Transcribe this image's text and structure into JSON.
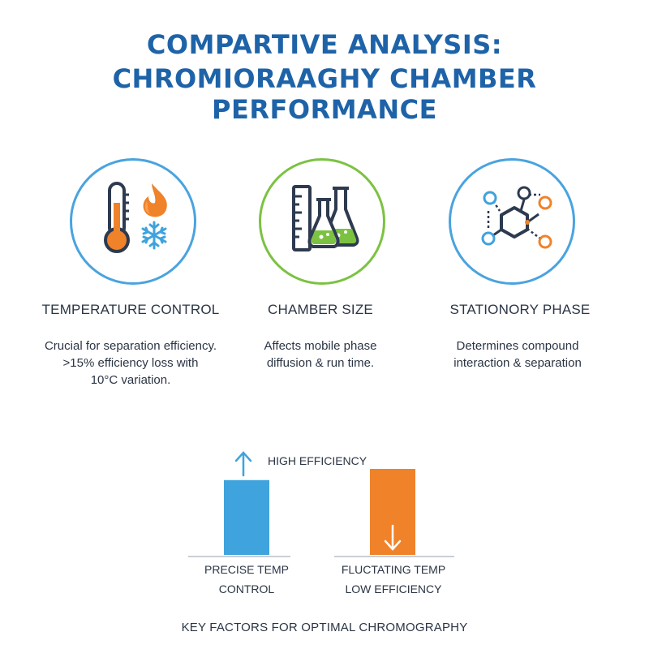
{
  "header": {
    "title_line1": "COMPARTIVE ANALYSIS:",
    "title_line2": "CHROMIORAAGHY CHAMBER PERFORMANCE"
  },
  "factors": [
    {
      "icon": "thermometer-flame-snowflake-icon",
      "title": "TEMPERATURE CONTROL",
      "desc_lines": [
        "Crucial for separation efficiency.",
        ">15% efficiency loss with",
        "10°C variation."
      ]
    },
    {
      "icon": "ruler-flasks-icon",
      "title": "CHAMBER SIZE",
      "desc_lines": [
        "Affects mobile phase",
        "diffusion & run time."
      ]
    },
    {
      "icon": "molecule-network-icon",
      "title": "STATIONORY PHASE",
      "desc_lines": [
        "Determines compound",
        "interaction & separation"
      ]
    }
  ],
  "chart_data": {
    "type": "bar",
    "categories": [
      "PRECISE TEMP CONTROL",
      "FLUCTATING TEMP LOW EFFICIENCY"
    ],
    "category_lines": [
      [
        "PRECISE TEMP",
        "CONTROL"
      ],
      [
        "FLUCTATING TEMP",
        "LOW EFFICIENCY"
      ]
    ],
    "values": [
      0.87,
      1.0
    ],
    "colors": [
      "#3fa3dd",
      "#f0822a"
    ],
    "annotation": "HIGH EFFICIENCY",
    "annotation_arrows": [
      "up-arrow",
      "down-arrow"
    ]
  },
  "footer": {
    "text": "KEY FACTORS FOR OPTIMAL CHROMOGRAPHY"
  },
  "colors": {
    "title": "#1e63a8",
    "blue": "#4aa3df",
    "green": "#7cc242",
    "orange": "#f0822a",
    "navy": "#2d3a4f"
  }
}
